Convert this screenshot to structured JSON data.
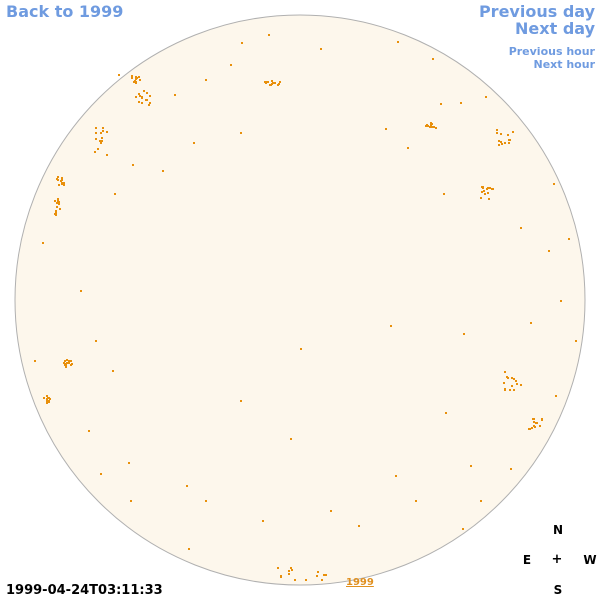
{
  "nav": {
    "back_label": "Back to 1999",
    "previous_day_label": "Previous day",
    "next_day_label": "Next day",
    "previous_hour_label": "Previous hour",
    "next_hour_label": "Next hour"
  },
  "compass": {
    "north": "N",
    "east": "E",
    "center": "+",
    "west": "W",
    "south": "S"
  },
  "timestamp": "1999-04-24T03:11:33",
  "year_link": "1999",
  "colors": {
    "disk_fill": "#fdf7ec",
    "disk_outline": "#b0b0b0",
    "feature": "#e8900c",
    "nav_link": "#6f9be0"
  },
  "icons": {
    "compass_center": "plus-icon"
  }
}
